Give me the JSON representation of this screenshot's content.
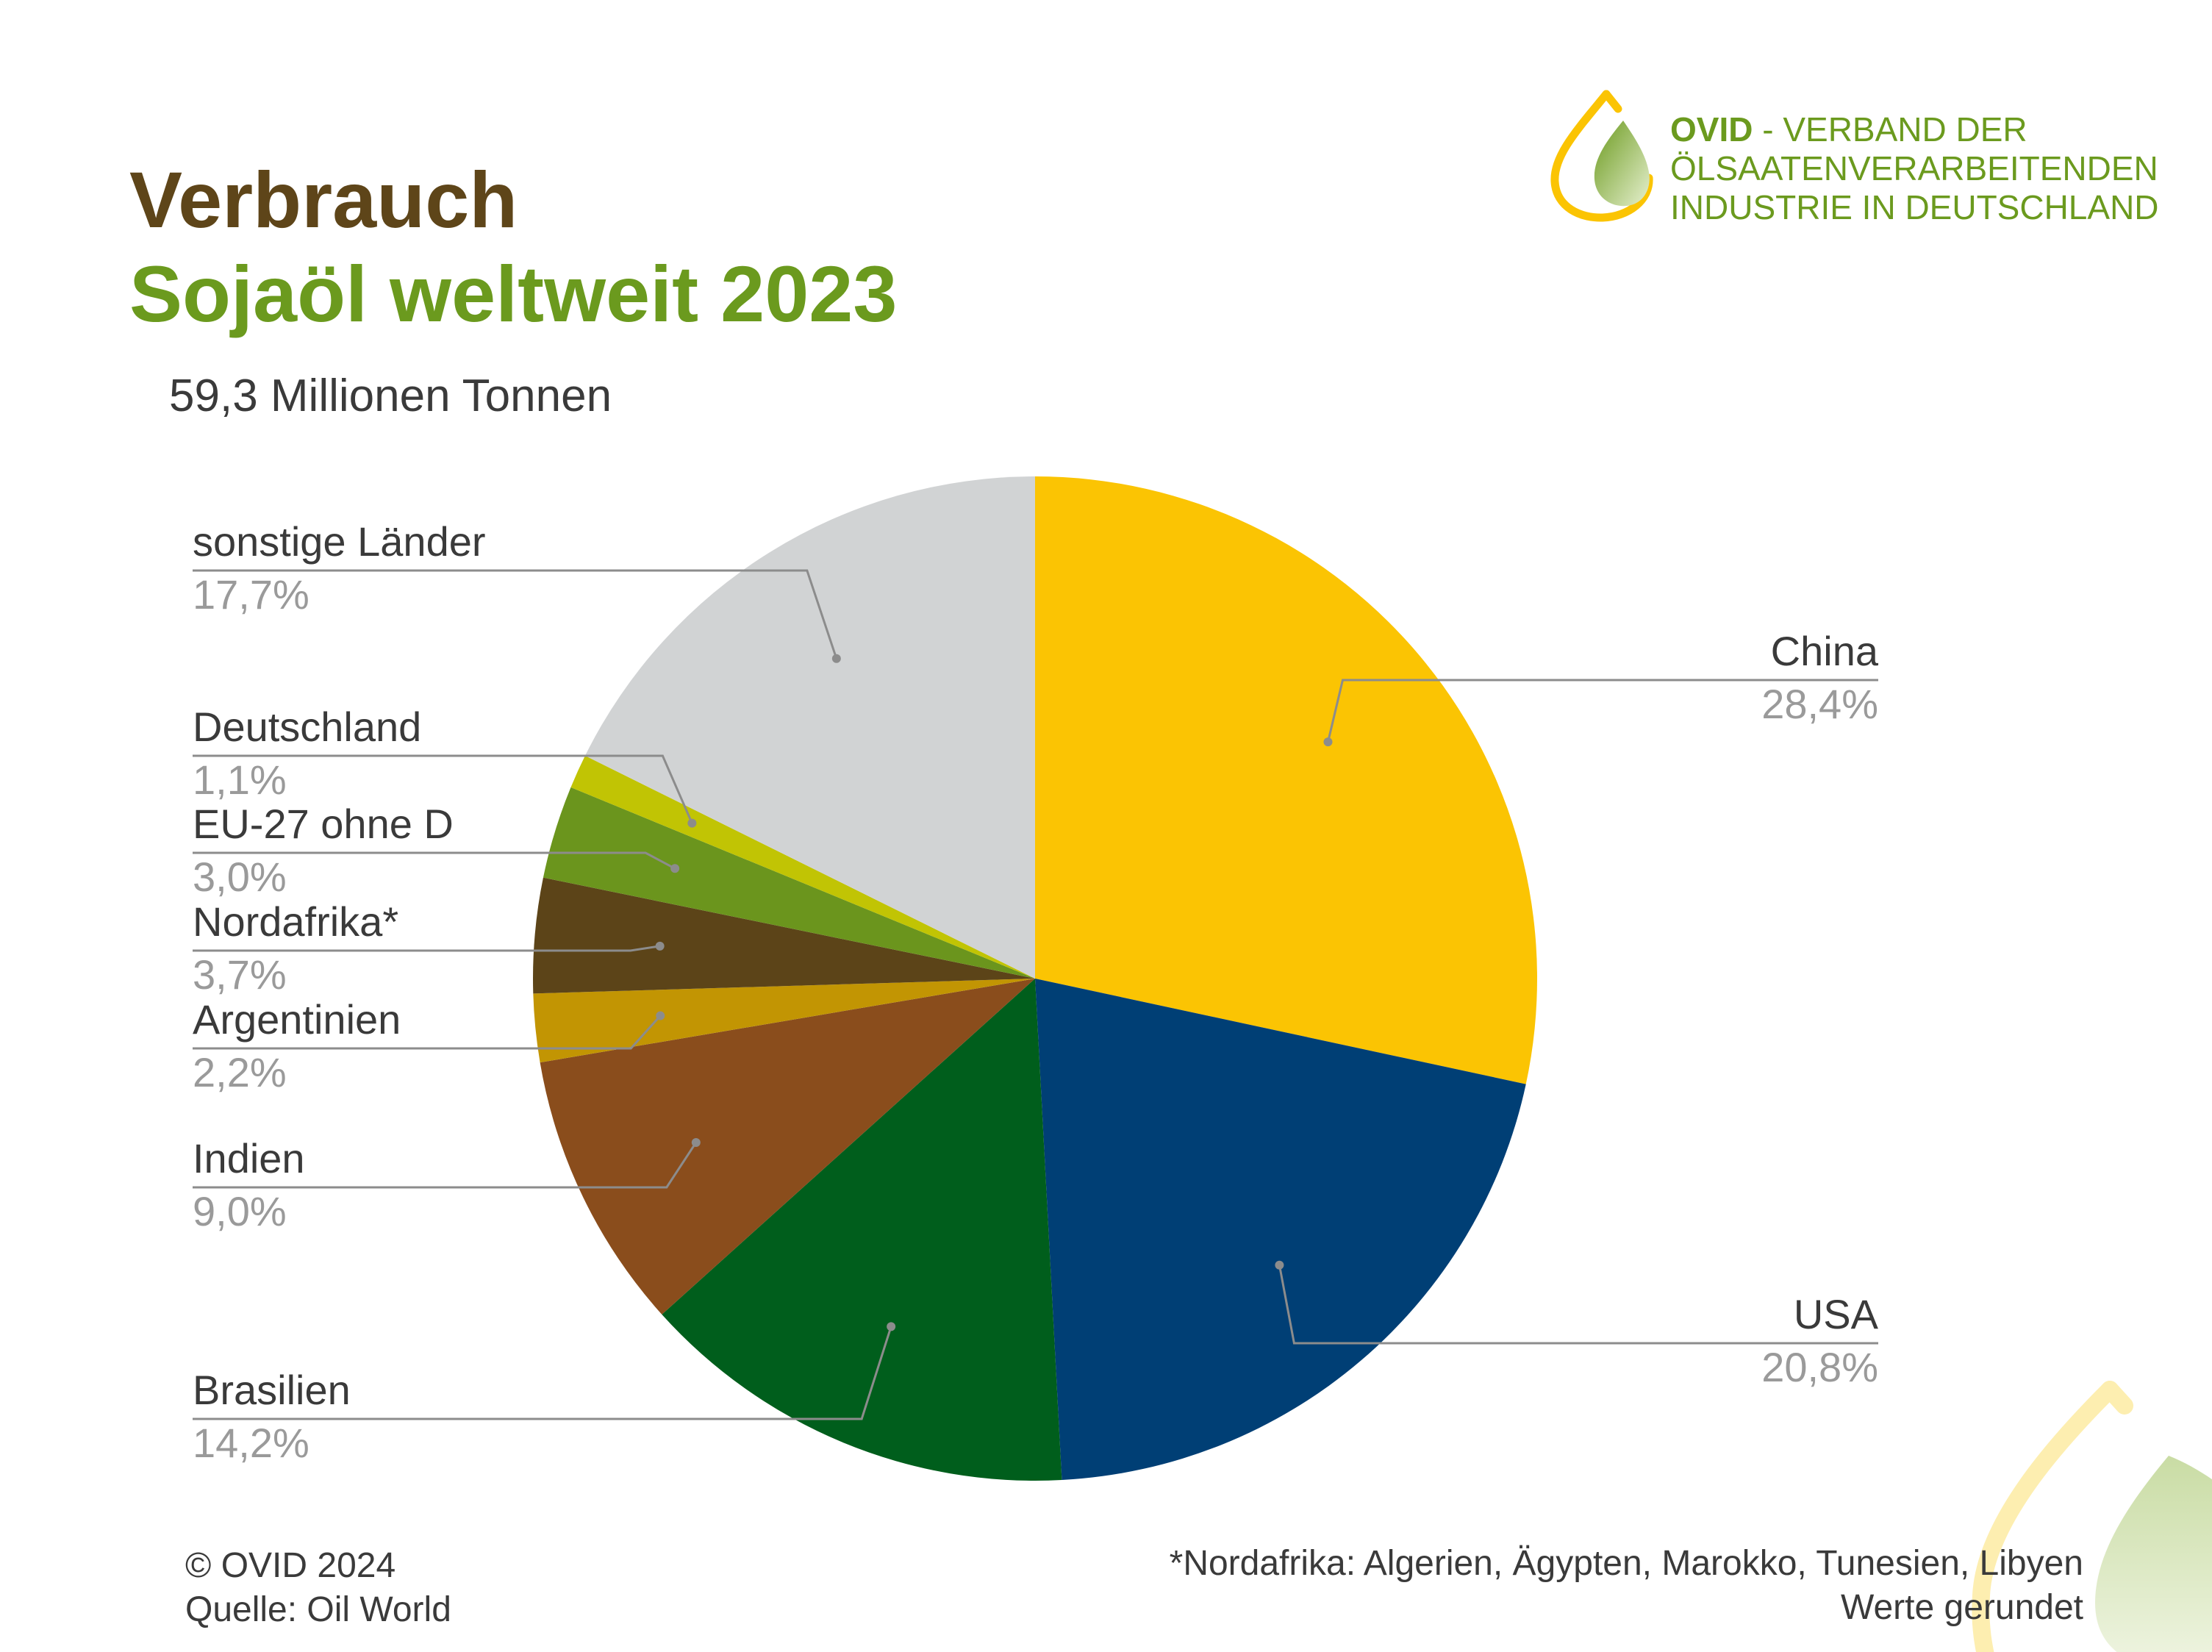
{
  "header": {
    "title_line1": "Verbrauch",
    "title_line2": "Sojaöl weltweit 2023",
    "subtitle": "59,3 Millionen Tonnen"
  },
  "logo": {
    "brand": "OVID",
    "line1_rest": " - VERBAND DER",
    "line2": "ÖLSAATENVERARBEITENDEN",
    "line3": "INDUSTRIE IN DEUTSCHLAND",
    "icon": "oil-drop-leaf-icon"
  },
  "chart_data": {
    "type": "pie",
    "start": "12 o'clock",
    "direction": "clockwise",
    "categories": [
      "China",
      "USA",
      "Brasilien",
      "Indien",
      "Argentinien",
      "Nordafrika*",
      "EU-27 ohne D",
      "Deutschland",
      "sonstige Länder"
    ],
    "values": [
      28.4,
      20.8,
      14.2,
      9.0,
      2.2,
      3.7,
      3.0,
      1.1,
      17.7
    ],
    "value_labels": [
      "28,4%",
      "20,8%",
      "14,2%",
      "9,0%",
      "2,2%",
      "3,7%",
      "3,0%",
      "1,1%",
      "17,7%"
    ],
    "colors": [
      "#fbc403",
      "#003f75",
      "#005e1c",
      "#8a4d1c",
      "#c29503",
      "#5c4418",
      "#6b951d",
      "#c1c404",
      "#d1d3d4"
    ],
    "unit": "%"
  },
  "footer": {
    "copyright": "© OVID 2024",
    "source": "Quelle: Oil World",
    "footnote": "*Nordafrika:  Algerien, Ägypten, Marokko, Tunesien, Libyen",
    "note": "Werte gerundet"
  }
}
